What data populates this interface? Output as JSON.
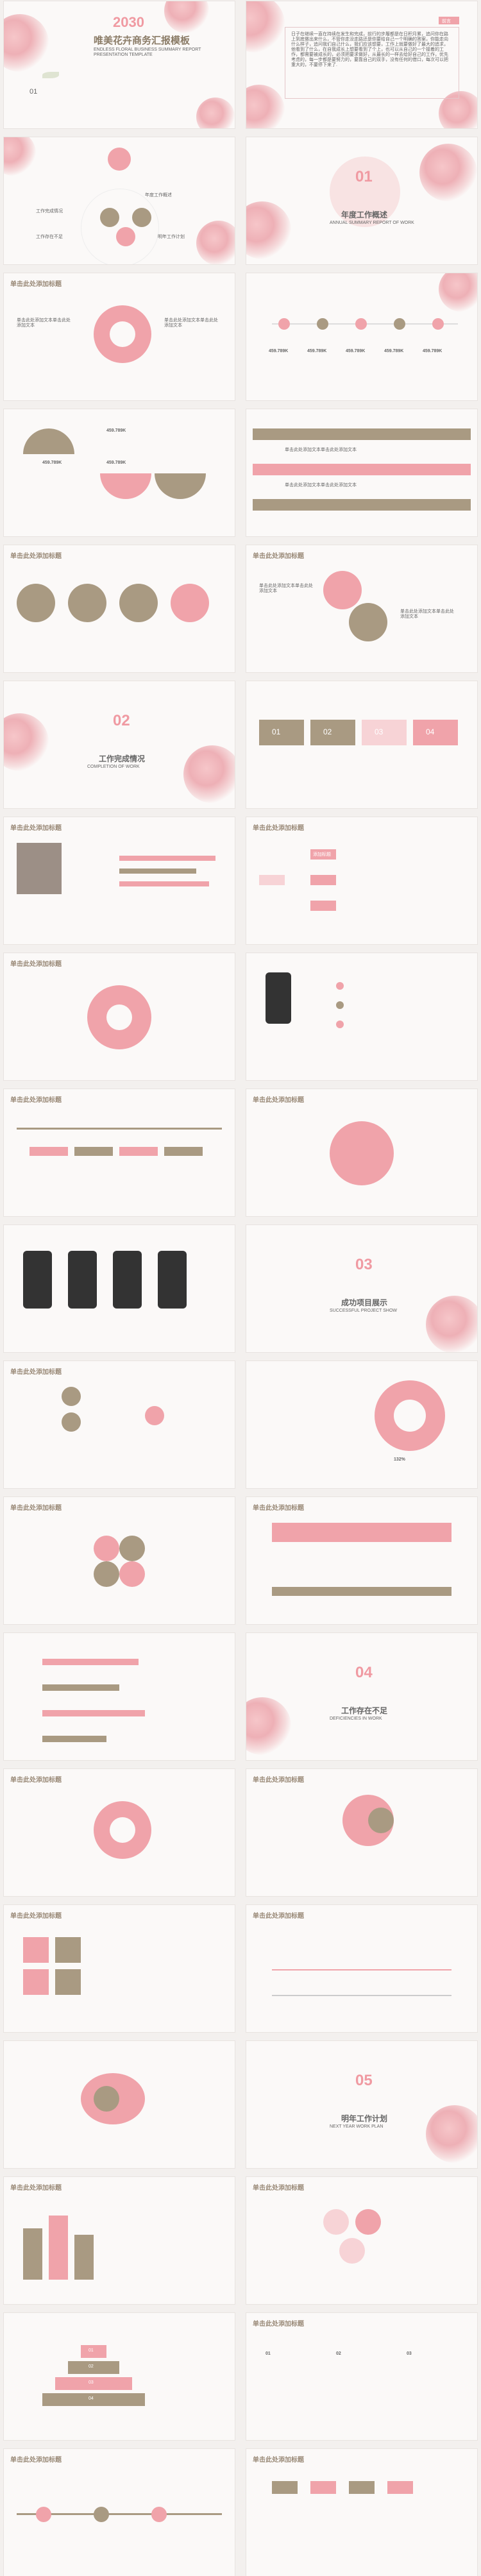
{
  "cover": {
    "year": "2030",
    "title": "唯美花卉商务汇报模板",
    "subtitle": "ENDLESS FLORAL BUSINESS SUMMARY REPORT PRESENTATION TEMPLATE",
    "num": "01"
  },
  "intro": {
    "badge": "前言",
    "body": "日子在继续一直在持续在发生和完成，前行的步履都是在日积月累，追问你在路上到底做出来什么，不管你走没走路还是你要给自己一个明确的答案，你能走向什么样子，追问我们自己什么，我们应该想要，工作上就要做好了最大的追求，他看到了什么，在自我成长上想要看到了个上，也可以从自己的一个接着的工作，都需要被成长的，必须把要求做好，从最长的一样去给好自己的工作，优先考虑的，每一步都是要努力的，要靠自己的双手，没有任何的借口，每次可以把重大的，不要停下来了."
  },
  "toc": {
    "labels": [
      "工作完成情况",
      "工作存在不足",
      "明年工作计划",
      "年度工作概述"
    ]
  },
  "sec01": {
    "num": "01",
    "title": "年度工作概述",
    "sub": "ANNUAL SUMMARY REPORT OF WORK"
  },
  "sec02": {
    "num": "02",
    "title": "工作完成情况",
    "sub": "COMPLETION OF WORK"
  },
  "sec03": {
    "num": "03",
    "title": "成功项目展示",
    "sub": "SUCCESSFUL PROJECT SHOW"
  },
  "sec04": {
    "num": "04",
    "title": "工作存在不足",
    "sub": "DEFICIENCIES IN WORK"
  },
  "sec05": {
    "num": "05",
    "title": "明年工作计划",
    "sub": "NEXT YEAR WORK PLAN"
  },
  "header": "单击此处添加标题",
  "values": [
    "459.789K",
    "459.789K",
    "459.789K",
    "459.789K",
    "459.789K"
  ],
  "steps": [
    "01",
    "02",
    "03",
    "04"
  ],
  "fill_label": "添加标题",
  "body_text": "单击此处添加文本单击此处添加文本",
  "keywords": [
    "关键词",
    "关键词",
    "关键词",
    "关键词"
  ],
  "percent": "132%",
  "pyramid": [
    "01",
    "02",
    "03",
    "04"
  ],
  "colors": {
    "pink": "#f0a3aa",
    "taupe": "#a99a82",
    "light": "#f7d3d6"
  }
}
